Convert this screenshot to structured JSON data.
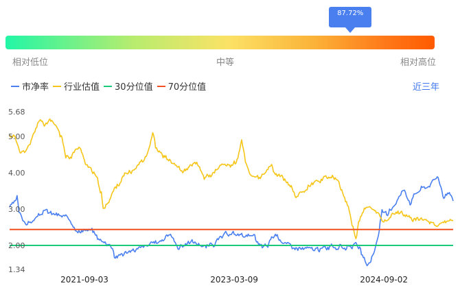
{
  "valuation_bar": {
    "marker_value": "87.72%",
    "marker_fraction": 0.8772,
    "labels": {
      "low": "相对低位",
      "mid": "中等",
      "high": "相对高位"
    }
  },
  "time_range": "近三年",
  "colors": {
    "pe": "#4a7ff0",
    "industry": "#f5c518",
    "p30": "#19c97a",
    "p70": "#f0501e"
  },
  "chart_data": {
    "type": "line",
    "ylim": [
      1.34,
      5.68
    ],
    "yticks": [
      "5.68",
      "5.00",
      "4.00",
      "3.00",
      "2.00",
      "1.34"
    ],
    "ytick_values": [
      5.68,
      5.0,
      4.0,
      3.0,
      2.0,
      1.34
    ],
    "xticks": [
      "2021-09-03",
      "2023-03-09",
      "2024-09-02"
    ],
    "xtick_index": [
      80,
      240,
      400
    ],
    "n_points": 475,
    "series": [
      {
        "name": "市净率",
        "color": "#4a7ff0",
        "anchors": [
          [
            0,
            3.08
          ],
          [
            5,
            3.15
          ],
          [
            8,
            3.3
          ],
          [
            10,
            2.9
          ],
          [
            14,
            2.7
          ],
          [
            20,
            2.62
          ],
          [
            26,
            2.7
          ],
          [
            30,
            2.78
          ],
          [
            36,
            2.95
          ],
          [
            42,
            2.9
          ],
          [
            50,
            2.85
          ],
          [
            58,
            2.78
          ],
          [
            65,
            2.72
          ],
          [
            70,
            2.5
          ],
          [
            76,
            2.38
          ],
          [
            82,
            2.42
          ],
          [
            88,
            2.4
          ],
          [
            94,
            2.22
          ],
          [
            100,
            2.1
          ],
          [
            106,
            2.06
          ],
          [
            110,
            1.98
          ],
          [
            112,
            1.7
          ],
          [
            118,
            1.75
          ],
          [
            126,
            1.82
          ],
          [
            134,
            1.88
          ],
          [
            142,
            1.95
          ],
          [
            150,
            2.02
          ],
          [
            158,
            2.1
          ],
          [
            164,
            2.18
          ],
          [
            168,
            2.28
          ],
          [
            172,
            2.32
          ],
          [
            176,
            2.05
          ],
          [
            180,
            1.96
          ],
          [
            186,
            2.02
          ],
          [
            194,
            2.1
          ],
          [
            202,
            2.05
          ],
          [
            210,
            1.95
          ],
          [
            218,
            2.05
          ],
          [
            226,
            2.2
          ],
          [
            232,
            2.3
          ],
          [
            238,
            2.32
          ],
          [
            246,
            2.3
          ],
          [
            254,
            2.28
          ],
          [
            262,
            2.2
          ],
          [
            266,
            2.02
          ],
          [
            270,
            1.96
          ],
          [
            276,
            1.98
          ],
          [
            280,
            2.25
          ],
          [
            286,
            2.28
          ],
          [
            292,
            2.1
          ],
          [
            300,
            1.98
          ],
          [
            310,
            1.92
          ],
          [
            320,
            1.9
          ],
          [
            330,
            1.88
          ],
          [
            340,
            1.95
          ],
          [
            350,
            1.96
          ],
          [
            358,
            1.94
          ],
          [
            366,
            1.96
          ],
          [
            370,
            2.0
          ],
          [
            374,
            1.9
          ],
          [
            378,
            1.62
          ],
          [
            382,
            1.45
          ],
          [
            386,
            1.58
          ],
          [
            390,
            1.82
          ],
          [
            394,
            2.3
          ],
          [
            398,
            2.95
          ],
          [
            404,
            2.8
          ],
          [
            410,
            3.1
          ],
          [
            416,
            3.35
          ],
          [
            422,
            3.55
          ],
          [
            428,
            3.2
          ],
          [
            434,
            3.45
          ],
          [
            440,
            3.58
          ],
          [
            446,
            3.62
          ],
          [
            452,
            3.75
          ],
          [
            458,
            3.92
          ],
          [
            464,
            3.3
          ],
          [
            470,
            3.5
          ],
          [
            474,
            3.25
          ]
        ],
        "noise": 0.05,
        "seed": 3
      },
      {
        "name": "行业估值",
        "color": "#f5c518",
        "anchors": [
          [
            0,
            5.0
          ],
          [
            4,
            5.05
          ],
          [
            8,
            4.8
          ],
          [
            12,
            4.6
          ],
          [
            18,
            4.58
          ],
          [
            22,
            4.75
          ],
          [
            26,
            5.1
          ],
          [
            30,
            5.35
          ],
          [
            34,
            5.45
          ],
          [
            38,
            5.3
          ],
          [
            42,
            5.4
          ],
          [
            46,
            5.35
          ],
          [
            52,
            5.2
          ],
          [
            56,
            4.9
          ],
          [
            60,
            4.5
          ],
          [
            64,
            4.45
          ],
          [
            70,
            4.6
          ],
          [
            74,
            4.7
          ],
          [
            78,
            4.5
          ],
          [
            82,
            4.25
          ],
          [
            86,
            4.1
          ],
          [
            90,
            4.0
          ],
          [
            94,
            3.75
          ],
          [
            98,
            3.45
          ],
          [
            100,
            2.95
          ],
          [
            104,
            3.15
          ],
          [
            110,
            3.45
          ],
          [
            116,
            3.7
          ],
          [
            122,
            3.9
          ],
          [
            128,
            4.0
          ],
          [
            134,
            4.1
          ],
          [
            140,
            4.3
          ],
          [
            146,
            4.5
          ],
          [
            150,
            4.8
          ],
          [
            153,
            5.15
          ],
          [
            156,
            4.7
          ],
          [
            160,
            4.55
          ],
          [
            166,
            4.45
          ],
          [
            172,
            4.3
          ],
          [
            178,
            4.2
          ],
          [
            184,
            4.0
          ],
          [
            190,
            4.1
          ],
          [
            196,
            4.2
          ],
          [
            200,
            4.25
          ],
          [
            204,
            4.05
          ],
          [
            208,
            3.85
          ],
          [
            212,
            3.9
          ],
          [
            218,
            4.0
          ],
          [
            224,
            4.15
          ],
          [
            230,
            4.25
          ],
          [
            236,
            4.2
          ],
          [
            242,
            4.3
          ],
          [
            246,
            4.6
          ],
          [
            248,
            4.85
          ],
          [
            252,
            4.3
          ],
          [
            256,
            4.0
          ],
          [
            262,
            3.9
          ],
          [
            268,
            3.82
          ],
          [
            274,
            4.05
          ],
          [
            280,
            4.15
          ],
          [
            284,
            3.95
          ],
          [
            290,
            3.9
          ],
          [
            296,
            3.72
          ],
          [
            302,
            3.55
          ],
          [
            306,
            3.35
          ],
          [
            312,
            3.45
          ],
          [
            318,
            3.62
          ],
          [
            324,
            3.75
          ],
          [
            330,
            3.78
          ],
          [
            336,
            3.86
          ],
          [
            340,
            3.92
          ],
          [
            346,
            3.85
          ],
          [
            352,
            3.7
          ],
          [
            358,
            3.3
          ],
          [
            362,
            3.1
          ],
          [
            366,
            2.6
          ],
          [
            370,
            2.2
          ],
          [
            374,
            2.7
          ],
          [
            378,
            2.95
          ],
          [
            384,
            3.05
          ],
          [
            390,
            2.95
          ],
          [
            396,
            2.8
          ],
          [
            400,
            2.65
          ],
          [
            404,
            2.75
          ],
          [
            410,
            2.88
          ],
          [
            416,
            2.9
          ],
          [
            422,
            2.85
          ],
          [
            428,
            2.78
          ],
          [
            434,
            2.72
          ],
          [
            440,
            2.7
          ],
          [
            446,
            2.68
          ],
          [
            452,
            2.62
          ],
          [
            458,
            2.58
          ],
          [
            464,
            2.62
          ],
          [
            470,
            2.65
          ],
          [
            474,
            2.72
          ]
        ],
        "noise": 0.055,
        "seed": 11
      },
      {
        "name": "30分位值",
        "color": "#19c97a",
        "constant": 2.0
      },
      {
        "name": "70分位值",
        "color": "#f0501e",
        "constant": 2.44
      }
    ]
  }
}
